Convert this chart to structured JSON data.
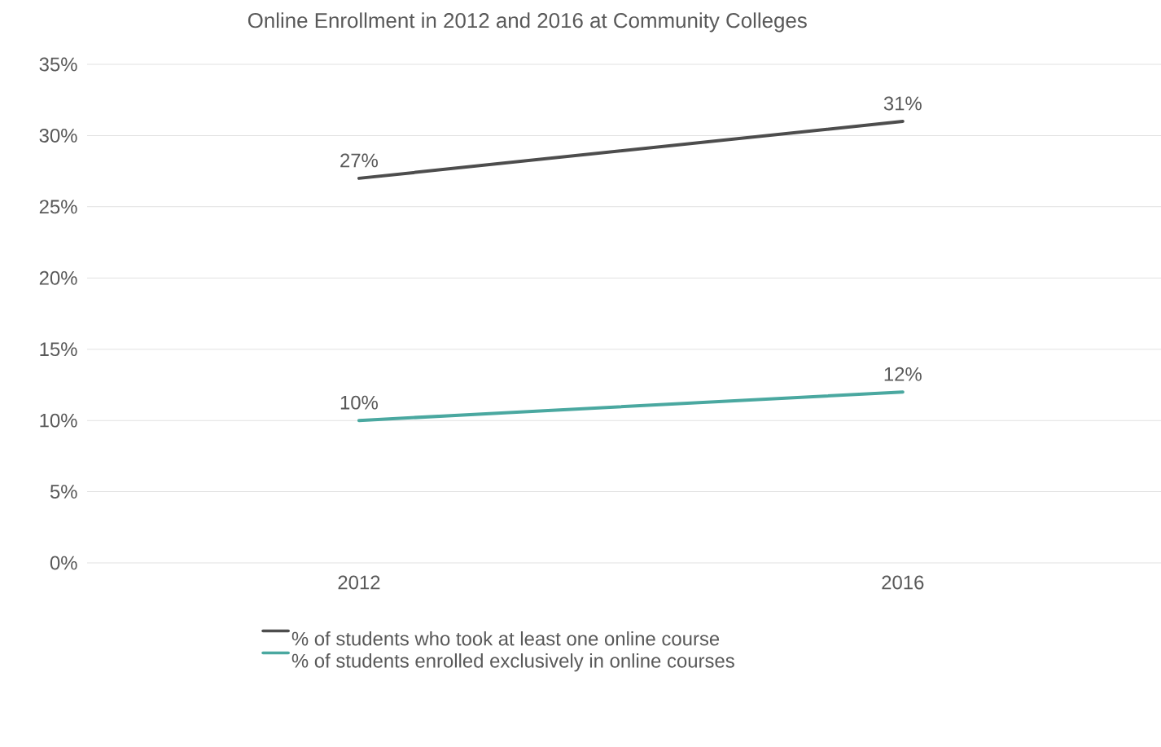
{
  "chart_data": {
    "type": "line",
    "title": "Online Enrollment in 2012 and 2016 at Community Colleges",
    "categories": [
      "2012",
      "2016"
    ],
    "series": [
      {
        "name": "% of students who took at least one online course",
        "color": "#4d4d4d",
        "values": [
          27,
          31
        ],
        "value_labels": [
          "27%",
          "31%"
        ]
      },
      {
        "name": "% of students enrolled exclusively in online courses",
        "color": "#4aa8a0",
        "values": [
          10,
          12
        ],
        "value_labels": [
          "10%",
          "12%"
        ]
      }
    ],
    "ylim": [
      0,
      35
    ],
    "yticks": [
      {
        "value": 0,
        "label": "0%"
      },
      {
        "value": 5,
        "label": "5%"
      },
      {
        "value": 10,
        "label": "10%"
      },
      {
        "value": 15,
        "label": "15%"
      },
      {
        "value": 20,
        "label": "20%"
      },
      {
        "value": 25,
        "label": "25%"
      },
      {
        "value": 30,
        "label": "30%"
      },
      {
        "value": 35,
        "label": "35%"
      }
    ],
    "grid": "y",
    "legend": "bottom",
    "marker": "none",
    "line_style": "solid"
  }
}
